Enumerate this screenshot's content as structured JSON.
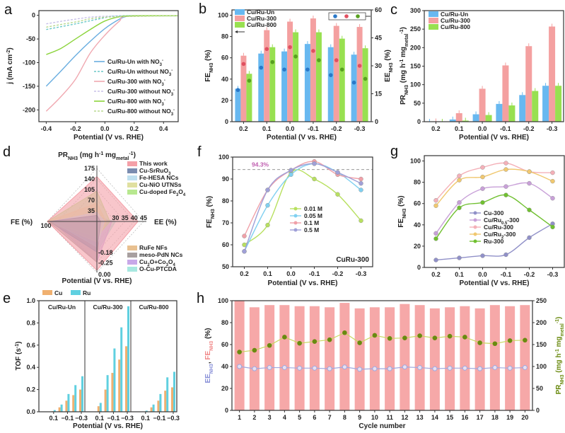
{
  "panel_labels": [
    "a",
    "b",
    "c",
    "d",
    "e",
    "f",
    "g",
    "h"
  ],
  "chart_data": [
    {
      "id": "a",
      "type": "line",
      "xlabel": "Potential (V vs. RHE)",
      "ylabel": "j (mA cm^{-2})",
      "xlim": [
        -0.45,
        0.5
      ],
      "ylim": [
        -225,
        10
      ],
      "xticks": [
        "-0.4",
        "-0.2",
        "0.0",
        "0.2",
        "0.4"
      ],
      "yticks": [
        "0",
        "-50",
        "-100",
        "-150",
        "-200"
      ],
      "legend": "bottom-right",
      "series": [
        {
          "name": "Cu/Ru-Un with NO_{3}^{-}",
          "color": "#6aaee0",
          "dash": false,
          "x": [
            -0.4,
            -0.3,
            -0.2,
            -0.1,
            0,
            0.1,
            0.15,
            0.2,
            0.5
          ],
          "y": [
            -150,
            -118,
            -85,
            -55,
            -28,
            -8,
            -2,
            -1,
            -1
          ]
        },
        {
          "name": "Cu/Ru-Un without NO_{3}^{-}",
          "color": "#6ac8c8",
          "dash": true,
          "x": [
            -0.4,
            -0.2,
            0,
            0.1,
            0.5
          ],
          "y": [
            -30,
            -18,
            -5,
            -1,
            -1
          ]
        },
        {
          "name": "Cu/Ru-300 with NO_{3}^{-}",
          "color": "#f0a8b0",
          "dash": false,
          "x": [
            -0.4,
            -0.3,
            -0.2,
            -0.1,
            0,
            0.1,
            0.15,
            0.5
          ],
          "y": [
            -203,
            -172,
            -135,
            -80,
            -42,
            -12,
            -2,
            -1
          ]
        },
        {
          "name": "Cu/Ru-300 without NO_{3}^{-}",
          "color": "#c8c0e8",
          "dash": true,
          "x": [
            -0.4,
            -0.2,
            0,
            0.5
          ],
          "y": [
            -18,
            -8,
            -2,
            -1
          ]
        },
        {
          "name": "Cu/Ru-800 with NO_{3}^{-}",
          "color": "#8cd43c",
          "dash": false,
          "x": [
            -0.4,
            -0.3,
            -0.2,
            -0.1,
            0,
            0.1,
            0.2,
            0.5
          ],
          "y": [
            -83,
            -70,
            -50,
            -30,
            -12,
            -3,
            -1,
            -1
          ]
        },
        {
          "name": "Cu/Ru-800 without NO_{3}^{-}",
          "color": "#b8d890",
          "dash": true,
          "x": [
            -0.4,
            -0.2,
            0,
            0.5
          ],
          "y": [
            -25,
            -14,
            -4,
            -1
          ]
        }
      ]
    },
    {
      "id": "b",
      "type": "bar",
      "xlabel": "Potential (V vs. RHE)",
      "ylabel": "FE_{NH3} (%)",
      "ylabel_right": "EE_{NH3} (%)",
      "categories": [
        "0.2",
        "0.1",
        "0.0",
        "-0.1",
        "-0.2",
        "-0.3"
      ],
      "ylim": [
        0,
        105
      ],
      "ylim_right": [
        0,
        60
      ],
      "yticks": [
        "0",
        "20",
        "40",
        "60",
        "80",
        "100"
      ],
      "yticks_right": [
        "0",
        "15",
        "30",
        "45",
        "60"
      ],
      "legend": "top-left",
      "series": [
        {
          "name": "Cu/Ru-Un",
          "color": "#68b8f0",
          "dot": "#2a78c8",
          "values": [
            31,
            64,
            66,
            73,
            70,
            63
          ],
          "ee": [
            17,
            29,
            28,
            28,
            25,
            21
          ]
        },
        {
          "name": "Cu/Ru-300",
          "color": "#f4a0a0",
          "dot": "#e05060",
          "values": [
            62,
            86,
            94,
            97,
            90,
            89
          ],
          "ee": [
            31,
            39,
            40,
            38,
            33,
            30
          ]
        },
        {
          "name": "Cu/Ru-800",
          "color": "#98e050",
          "dot": "#58a020",
          "values": [
            45,
            70,
            84,
            84,
            78,
            69
          ],
          "ee": [
            22,
            32,
            35,
            33,
            28,
            23
          ]
        }
      ]
    },
    {
      "id": "c",
      "type": "bar",
      "xlabel": "Potential (V vs. RHE)",
      "ylabel": "PR_{NH3} (mg h^{-1} mg_{metal}^{-1})",
      "categories": [
        "0.2",
        "0.1",
        "0.0",
        "-0.1",
        "-0.2",
        "-0.3"
      ],
      "ylim": [
        0,
        300
      ],
      "yticks": [
        "0",
        "50",
        "100",
        "150",
        "200",
        "250",
        "300"
      ],
      "legend": "top-left",
      "series": [
        {
          "name": "Cu/Ru-Un",
          "color": "#68b8f0",
          "values": [
            0,
            6,
            20,
            48,
            72,
            97
          ]
        },
        {
          "name": "Cu/Ru-300",
          "color": "#f4a0a0",
          "values": [
            1,
            23,
            89,
            152,
            204,
            257
          ]
        },
        {
          "name": "Cu/Ru-800",
          "color": "#98e050",
          "values": [
            0,
            3,
            18,
            44,
            83,
            97
          ]
        }
      ]
    },
    {
      "id": "d",
      "type": "radar",
      "axes": {
        "top": {
          "label": "PR_{NH3} (mg h^{-1} mg_{metal}^{-1})",
          "range": [
            0,
            175
          ],
          "ticks": [
            "35",
            "70",
            "105",
            "140",
            "175"
          ]
        },
        "right": {
          "label": "EE (%)",
          "range": [
            20,
            45
          ],
          "ticks": [
            "30",
            "35",
            "40",
            "45"
          ]
        },
        "bottom": {
          "label": "Potential (V vs. RHE)",
          "range": [
            -0.5,
            0
          ],
          "ticks": [
            "-0.18",
            "-0.25",
            "0.00"
          ]
        },
        "left": {
          "label": "FE (%)",
          "range": [
            0,
            100
          ],
          "ticks": [
            "100"
          ]
        }
      },
      "series": [
        {
          "name": "This work",
          "color": "#f4a0a8",
          "PR": 148,
          "EE": 42,
          "Potential": -0.02,
          "FE": 100
        },
        {
          "name": "Cu-SrRuO_{3}",
          "color": "#7a8cb0",
          "PR": 20,
          "EE": 22,
          "Potential": -0.2,
          "FE": 96
        },
        {
          "name": "Fe-HESA NCs",
          "color": "#bfe0f0",
          "PR": 30,
          "EE": 24,
          "Potential": -0.25,
          "FE": 90
        },
        {
          "name": "Cu-NiO UTNSs",
          "color": "#e0e0a0",
          "PR": 60,
          "EE": 25,
          "Potential": -0.3,
          "FE": 100
        },
        {
          "name": "Cu-doped Fe_{3}O_{4}",
          "color": "#b8e890",
          "PR": 100,
          "EE": 27,
          "Potential": -0.35,
          "FE": 100
        },
        {
          "name": "RuFe NFs",
          "color": "#e8c090",
          "PR": 15,
          "EE": 22,
          "Potential": -0.3,
          "FE": 95
        },
        {
          "name": "meso-PdN NCs",
          "color": "#a8a0a0",
          "PR": 10,
          "EE": 22,
          "Potential": -0.1,
          "FE": 98
        },
        {
          "name": "Cu_{2}O+Co_{3}O_{4}",
          "color": "#c8a8e8",
          "PR": 15,
          "EE": 28,
          "Potential": -0.1,
          "FE": 90
        },
        {
          "name": "O-Cu-PTCDA",
          "color": "#a8e8e0",
          "PR": 15,
          "EE": 30,
          "Potential": -0.2,
          "FE": 85
        }
      ]
    },
    {
      "id": "e",
      "type": "bar",
      "xlabel": "Potential (V vs. RHE)",
      "ylabel": "TOF (s^{-1})",
      "ylim": [
        0,
        1.0
      ],
      "yticks": [
        "0.0",
        "0.2",
        "0.4",
        "0.6",
        "0.8",
        "1.0"
      ],
      "potentials": [
        "0.2",
        "0.1",
        "0.0",
        "-0.1",
        "-0.2",
        "-0.3"
      ],
      "xticks": [
        "0.1",
        "−0.1",
        "−0.3"
      ],
      "legend": "top",
      "series_names": [
        {
          "name": "Cu",
          "color": "#f0b070"
        },
        {
          "name": "Ru",
          "color": "#60d0e0"
        }
      ],
      "groups": [
        {
          "name": "Cu/Ru-Un",
          "Cu": [
            0,
            0.005,
            0.04,
            0.1,
            0.15,
            0.2
          ],
          "Ru": [
            0,
            0.015,
            0.065,
            0.16,
            0.24,
            0.32
          ]
        },
        {
          "name": "Cu/Ru-300",
          "Cu": [
            0,
            0.05,
            0.2,
            0.35,
            0.47,
            0.59
          ],
          "Ru": [
            0.002,
            0.08,
            0.33,
            0.57,
            0.76,
            0.95
          ]
        },
        {
          "name": "Cu/Ru-800",
          "Cu": [
            0,
            0.003,
            0.04,
            0.1,
            0.19,
            0.22
          ],
          "Ru": [
            0,
            0.01,
            0.065,
            0.16,
            0.31,
            0.36
          ]
        }
      ]
    },
    {
      "id": "f",
      "type": "line",
      "xlabel": "Potential (V vs. RHE)",
      "ylabel": "FE_{NH3} (%)",
      "categories": [
        "0.2",
        "0.1",
        "0.0",
        "-0.1",
        "-0.2",
        "-0.3"
      ],
      "ylim": [
        50,
        100
      ],
      "yticks": [
        "50",
        "60",
        "70",
        "80",
        "90",
        "100"
      ],
      "reference_line": {
        "value": 94.3,
        "label": "94.3%",
        "color": "#c060b0"
      },
      "annotation": "CuRu-300",
      "legend": "center",
      "series": [
        {
          "name": "0.01 M",
          "color": "#b8e060",
          "values": [
            60,
            69,
            93,
            90,
            83,
            71
          ]
        },
        {
          "name": "0.05 M",
          "color": "#80d0f0",
          "values": [
            57,
            78,
            92,
            97,
            93,
            85
          ]
        },
        {
          "name": "0.1 M",
          "color": "#f0a0a8",
          "values": [
            64,
            85,
            94,
            98,
            92,
            90
          ]
        },
        {
          "name": "0.5 M",
          "color": "#a0a0d8",
          "values": [
            57,
            85,
            94,
            97,
            93,
            88
          ]
        }
      ]
    },
    {
      "id": "g",
      "type": "line",
      "xlabel": "Potential (V vs. RHE)",
      "ylabel": "FE_{NH3} (%)",
      "categories": [
        "0.2",
        "0.1",
        "0.0",
        "-0.1",
        "-0.2",
        "-0.3"
      ],
      "ylim": [
        0,
        105
      ],
      "yticks": [
        "0",
        "20",
        "40",
        "60",
        "80",
        "100"
      ],
      "legend": "center",
      "series": [
        {
          "name": "Cu-300",
          "color": "#9090c8",
          "values": [
            7,
            9,
            11,
            12,
            28,
            41
          ]
        },
        {
          "name": "Cu/Ru_{0.5}-300",
          "color": "#c8a0d8",
          "values": [
            32,
            61,
            74,
            76,
            79,
            65
          ]
        },
        {
          "name": "Cu/Ru-300",
          "color": "#f4b0b8",
          "values": [
            63,
            86,
            94,
            98,
            90,
            89
          ]
        },
        {
          "name": "Cu/Ru_{2}-300",
          "color": "#f0c870",
          "values": [
            58,
            82,
            85,
            92,
            90,
            81
          ]
        },
        {
          "name": "Ru-300",
          "color": "#70c030",
          "values": [
            27,
            56,
            61,
            68,
            54,
            38
          ]
        }
      ]
    },
    {
      "id": "h",
      "type": "bar",
      "xlabel": "Cycle number",
      "ylabel_parts": [
        {
          "text": "EE_{NH3}",
          "color": "#8890d8"
        },
        {
          "text": ", ",
          "color": "#222"
        },
        {
          "text": "FE_{NH3}",
          "color": "#f08888"
        },
        {
          "text": " (%)",
          "color": "#222"
        }
      ],
      "ylabel_right": "PR_{NH3} (mg h^{-1} mg_{metal}^{-1})",
      "categories": [
        "1",
        "2",
        "3",
        "4",
        "5",
        "6",
        "7",
        "8",
        "9",
        "10",
        "11",
        "12",
        "13",
        "14",
        "15",
        "16",
        "17",
        "18",
        "19",
        "20"
      ],
      "ylim": [
        0,
        100
      ],
      "ylim_right": [
        0,
        250
      ],
      "yticks": [
        "0",
        "20",
        "40",
        "60",
        "80",
        "100"
      ],
      "yticks_right": [
        "0",
        "50",
        "100",
        "150",
        "200",
        "250"
      ],
      "series": [
        {
          "name": "FE",
          "type": "bar",
          "color": "#f6a8a8",
          "values": [
            100,
            94,
            96,
            96,
            95,
            95,
            94,
            98,
            93,
            94,
            94,
            97,
            96,
            93,
            94,
            95,
            93,
            96,
            95,
            96
          ]
        },
        {
          "name": "EE",
          "type": "line",
          "color": "#a0a8e0",
          "values": [
            40,
            38,
            39,
            39,
            38.5,
            38.5,
            38,
            39.5,
            37.5,
            38,
            38,
            39.5,
            39,
            38,
            38.5,
            38.5,
            38,
            39,
            38.5,
            39
          ]
        },
        {
          "name": "PR",
          "type": "line",
          "axis": "right",
          "color": "#6a8a10",
          "line_color": "#c8d860",
          "values": [
            133,
            137,
            148,
            167,
            153,
            157,
            161,
            177,
            154,
            171,
            164,
            165,
            170,
            165,
            169,
            167,
            154,
            152,
            159,
            160
          ]
        }
      ]
    }
  ]
}
